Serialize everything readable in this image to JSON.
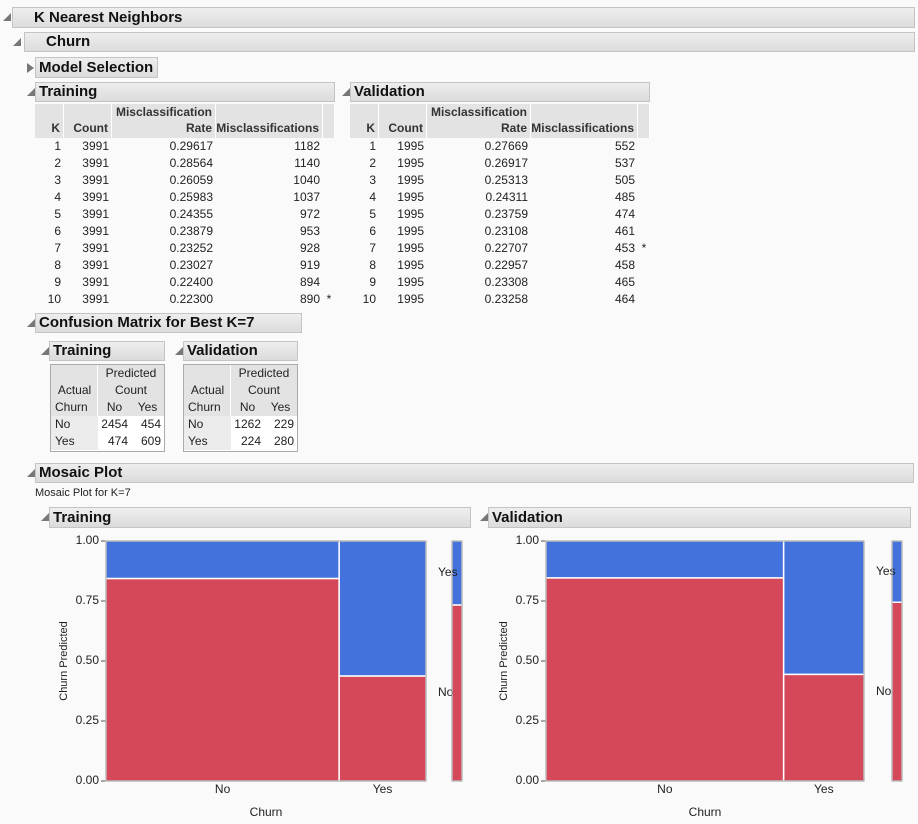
{
  "header": {
    "title": "K Nearest Neighbors",
    "subtitle": "Churn"
  },
  "model_selection": {
    "title": "Model Selection"
  },
  "tables": [
    {
      "title": "Training",
      "columns": [
        "K",
        "Count",
        "Misclassification Rate",
        "Misclassifications"
      ],
      "rows": [
        [
          1,
          3991,
          "0.29617",
          1182
        ],
        [
          2,
          3991,
          "0.28564",
          1140
        ],
        [
          3,
          3991,
          "0.26059",
          1040
        ],
        [
          4,
          3991,
          "0.25983",
          1037
        ],
        [
          5,
          3991,
          "0.24355",
          972
        ],
        [
          6,
          3991,
          "0.23879",
          953
        ],
        [
          7,
          3991,
          "0.23252",
          928
        ],
        [
          8,
          3991,
          "0.23027",
          919
        ],
        [
          9,
          3991,
          "0.22400",
          894
        ],
        [
          10,
          3991,
          "0.22300",
          890
        ]
      ],
      "best": {
        "k": 10,
        "marker": "*"
      }
    },
    {
      "title": "Validation",
      "columns": [
        "K",
        "Count",
        "Misclassification Rate",
        "Misclassifications"
      ],
      "rows": [
        [
          1,
          1995,
          "0.27669",
          552
        ],
        [
          2,
          1995,
          "0.26917",
          537
        ],
        [
          3,
          1995,
          "0.25313",
          505
        ],
        [
          4,
          1995,
          "0.24311",
          485
        ],
        [
          5,
          1995,
          "0.23759",
          474
        ],
        [
          6,
          1995,
          "0.23108",
          461
        ],
        [
          7,
          1995,
          "0.22707",
          453
        ],
        [
          8,
          1995,
          "0.22957",
          458
        ],
        [
          9,
          1995,
          "0.23308",
          465
        ],
        [
          10,
          1995,
          "0.23258",
          464
        ]
      ],
      "best": {
        "k": 7,
        "marker": "*"
      }
    }
  ],
  "confusion": {
    "title": "Confusion Matrix for Best K=7",
    "matrices": [
      {
        "title": "Training",
        "actual": "Actual",
        "predicted": "Predicted",
        "count": "Count",
        "churn": "Churn",
        "columns": [
          "No",
          "Yes"
        ],
        "rows": [
          {
            "label": "No",
            "values": [
              2454,
              454
            ]
          },
          {
            "label": "Yes",
            "values": [
              474,
              609
            ]
          }
        ]
      },
      {
        "title": "Validation",
        "actual": "Actual",
        "predicted": "Predicted",
        "count": "Count",
        "churn": "Churn",
        "columns": [
          "No",
          "Yes"
        ],
        "rows": [
          {
            "label": "No",
            "values": [
              1262,
              229
            ]
          },
          {
            "label": "Yes",
            "values": [
              224,
              280
            ]
          }
        ]
      }
    ]
  },
  "mosaic": {
    "title": "Mosaic Plot",
    "subtitle": "Mosaic Plot for K=7",
    "colors": [
      "#d4485a",
      "#4472dd"
    ],
    "plots": [
      {
        "title": "Training",
        "x_label": "Churn",
        "y_label": "Churn Predicted",
        "ylim": [
          0,
          1
        ],
        "yticks": [
          {
            "value": 0,
            "label": "0.00"
          },
          {
            "value": 0.25,
            "label": "0.25"
          },
          {
            "value": 0.5,
            "label": "0.50"
          },
          {
            "value": 0.75,
            "label": "0.75"
          },
          {
            "value": 1,
            "label": "1.00"
          }
        ]
      },
      {
        "title": "Validation",
        "x_label": "Churn",
        "y_label": "Churn Predicted",
        "ylim": [
          0,
          1
        ],
        "yticks": [
          {
            "value": 0,
            "label": "0.00"
          },
          {
            "value": 0.25,
            "label": "0.25"
          },
          {
            "value": 0.5,
            "label": "0.50"
          },
          {
            "value": 0.75,
            "label": "0.75"
          },
          {
            "value": 1,
            "label": "1.00"
          }
        ]
      }
    ]
  }
}
